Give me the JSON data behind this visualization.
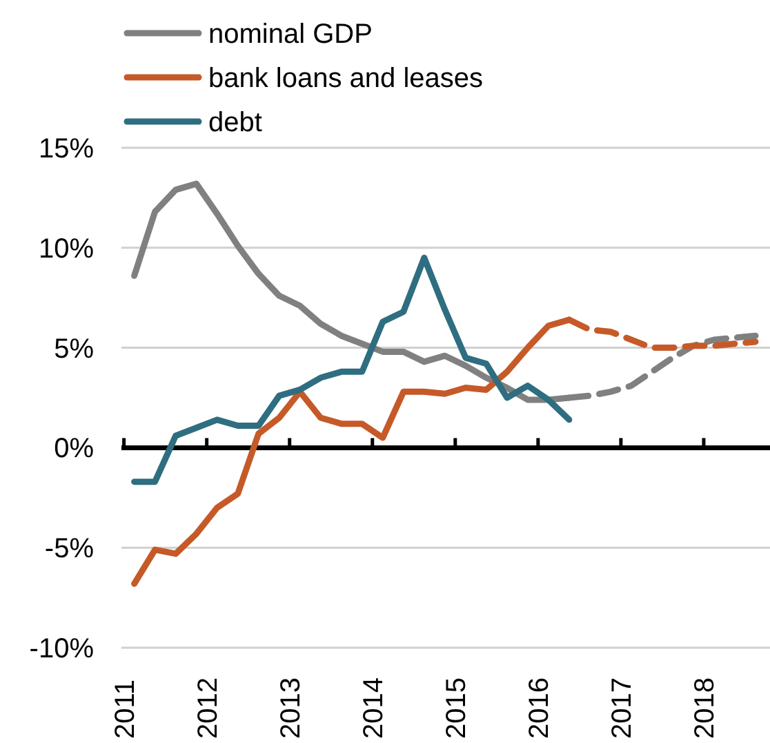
{
  "chart_data": {
    "type": "line",
    "x": [
      2011.125,
      2011.375,
      2011.625,
      2011.875,
      2012.125,
      2012.375,
      2012.625,
      2012.875,
      2013.125,
      2013.375,
      2013.625,
      2013.875,
      2014.125,
      2014.375,
      2014.625,
      2014.875,
      2015.125,
      2015.375,
      2015.625,
      2015.875,
      2016.125,
      2016.375
    ],
    "series": [
      {
        "name": "nominal GDP",
        "color": "#808080",
        "values": [
          8.6,
          11.8,
          12.9,
          13.2,
          11.7,
          10.1,
          8.7,
          7.6,
          7.1,
          6.2,
          5.6,
          5.2,
          4.8,
          4.8,
          4.3,
          4.6,
          4.1,
          3.5,
          3.0,
          2.4,
          2.4,
          2.5
        ]
      },
      {
        "name": "bank loans and leases",
        "color": "#c55a28",
        "values": [
          -6.8,
          -5.1,
          -5.3,
          -4.3,
          -3.0,
          -2.3,
          0.7,
          1.5,
          2.8,
          1.5,
          1.2,
          1.2,
          0.5,
          2.8,
          2.8,
          2.7,
          3.0,
          2.9,
          3.8,
          5.0,
          6.1,
          6.4
        ]
      },
      {
        "name": "debt",
        "color": "#2e6e80",
        "values": [
          -1.7,
          -1.7,
          0.6,
          1.0,
          1.4,
          1.1,
          1.1,
          2.6,
          2.9,
          3.5,
          3.8,
          3.8,
          6.3,
          6.8,
          9.5,
          6.9,
          4.5,
          4.2,
          2.5,
          3.1,
          2.4,
          1.4
        ]
      },
      {
        "color": "#808080",
        "line_style": "dashed",
        "x": [
          2016.375,
          2016.625,
          2016.875,
          2017.125,
          2017.375,
          2017.625,
          2017.875,
          2018.125,
          2018.375,
          2018.625
        ],
        "values": [
          2.5,
          2.6,
          2.8,
          3.1,
          3.8,
          4.5,
          5.1,
          5.4,
          5.5,
          5.6
        ]
      },
      {
        "color": "#c55a28",
        "line_style": "dashed",
        "x": [
          2016.375,
          2016.625,
          2016.875,
          2017.125,
          2017.375,
          2017.625,
          2017.875,
          2018.125,
          2018.375,
          2018.625
        ],
        "values": [
          6.4,
          5.9,
          5.8,
          5.4,
          5.0,
          5.0,
          5.1,
          5.1,
          5.2,
          5.3
        ]
      }
    ],
    "xlim": [
      2010.97,
      2018.8
    ],
    "xticks": [
      2011,
      2012,
      2013,
      2014,
      2015,
      2016,
      2017,
      2018
    ],
    "ylim": [
      -10,
      15
    ],
    "yticks": [
      {
        "value": -10,
        "label": "-10%"
      },
      {
        "value": -5,
        "label": "-5%"
      },
      {
        "value": 0,
        "label": "0%"
      },
      {
        "value": 5,
        "label": "5%"
      },
      {
        "value": 10,
        "label": "10%"
      },
      {
        "value": 15,
        "label": "15%"
      }
    ],
    "grid": "y",
    "legend": "top left",
    "line_style": "solid",
    "marker": "none"
  }
}
